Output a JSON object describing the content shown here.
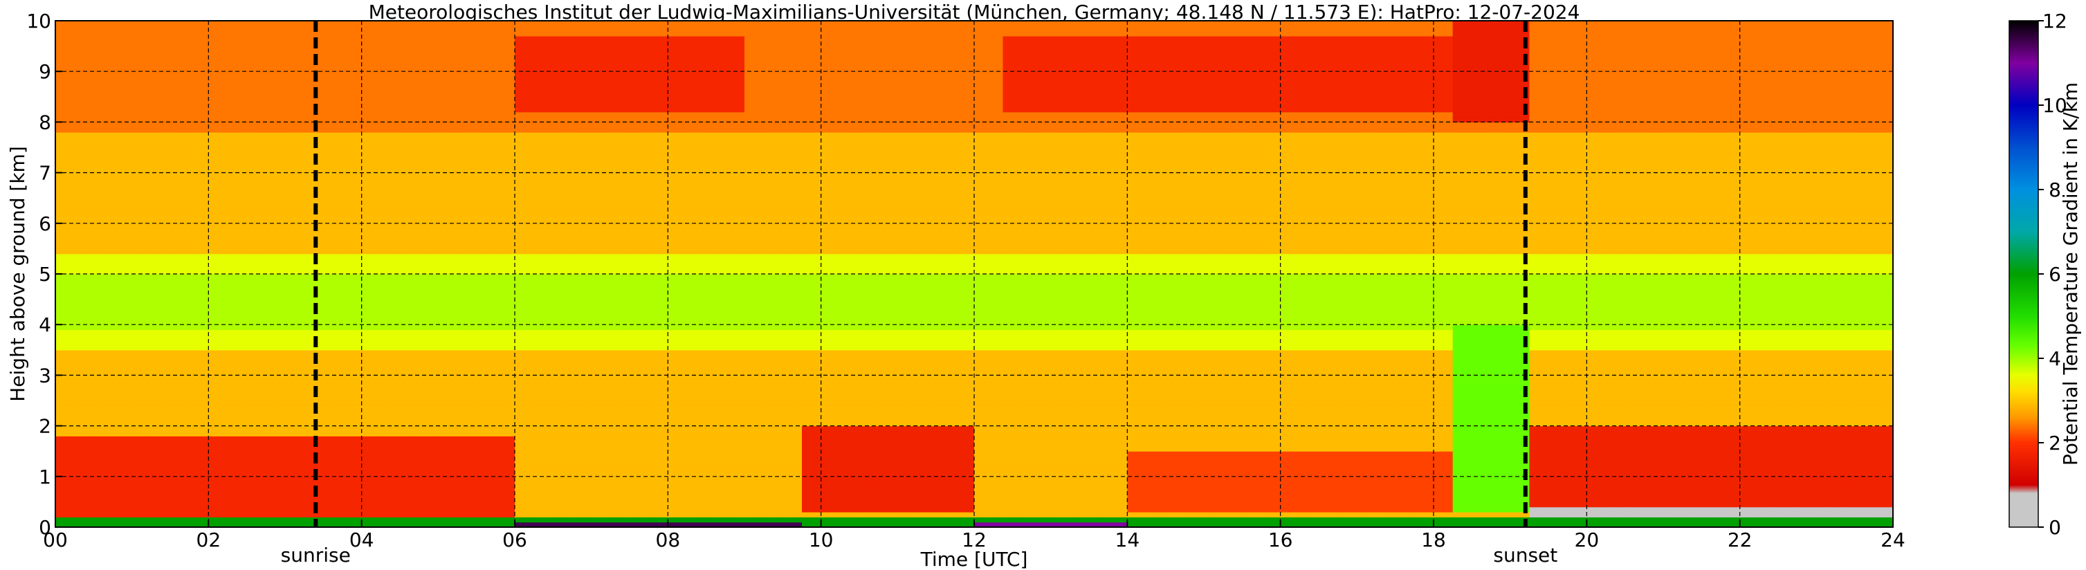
{
  "chart_data": {
    "type": "heatmap",
    "title": "Meteorologisches Institut der Ludwig-Maximilians-Universität (München, Germany; 48.148 N / 11.573 E):    HatPro: 12-07-2024",
    "xlabel": "Time [UTC]",
    "ylabel": "Height above ground [km]",
    "colorbar_label": "Potential Temperature Gradient in K/km",
    "xlim": [
      0,
      24
    ],
    "ylim": [
      0,
      10
    ],
    "x_ticks": [
      0,
      2,
      4,
      6,
      8,
      10,
      12,
      14,
      16,
      18,
      20,
      22,
      24
    ],
    "x_tick_labels": [
      "00",
      "02",
      "04",
      "06",
      "08",
      "10",
      "12",
      "14",
      "16",
      "18",
      "20",
      "22",
      "24"
    ],
    "y_ticks": [
      0,
      1,
      2,
      3,
      4,
      5,
      6,
      7,
      8,
      9,
      10
    ],
    "y_tick_labels": [
      "0",
      "1",
      "2",
      "3",
      "4",
      "5",
      "6",
      "7",
      "8",
      "9",
      "10"
    ],
    "colorbar_range": [
      0,
      12
    ],
    "colorbar_ticks": [
      0,
      2,
      4,
      6,
      8,
      10,
      12
    ],
    "colorbar_tick_labels": [
      "0",
      "2",
      "4",
      "6",
      "8",
      "10",
      "12"
    ],
    "grid": true,
    "events": [
      {
        "label": "sunrise",
        "time": 3.4
      },
      {
        "label": "sunset",
        "time": 19.2
      }
    ],
    "field_regions": [
      {
        "t": [
          0,
          24
        ],
        "h": [
          0,
          10
        ],
        "value": 2.9
      },
      {
        "t": [
          0,
          24
        ],
        "h": [
          7.8,
          10
        ],
        "value": 2.4
      },
      {
        "t": [
          0,
          24
        ],
        "h": [
          3.5,
          5.4
        ],
        "value": 3.6
      },
      {
        "t": [
          0,
          24
        ],
        "h": [
          3.9,
          5.0
        ],
        "value": 3.9
      },
      {
        "t": [
          6.0,
          9.0
        ],
        "h": [
          8.2,
          9.7
        ],
        "value": 1.8
      },
      {
        "t": [
          12.4,
          18.3
        ],
        "h": [
          8.2,
          9.7
        ],
        "value": 1.8
      },
      {
        "t": [
          18.3,
          19.2
        ],
        "h": [
          8.0,
          10
        ],
        "value": 1.6
      },
      {
        "t": [
          0,
          6.0
        ],
        "h": [
          0.2,
          1.8
        ],
        "value": 1.8
      },
      {
        "t": [
          9.7,
          12.0
        ],
        "h": [
          0.3,
          2.0
        ],
        "value": 1.7
      },
      {
        "t": [
          14.0,
          18.3
        ],
        "h": [
          0.3,
          1.5
        ],
        "value": 2.1
      },
      {
        "t": [
          18.3,
          19.2
        ],
        "h": [
          0.3,
          4.0
        ],
        "value": 4.3
      },
      {
        "t": [
          19.2,
          24
        ],
        "h": [
          0.3,
          2.0
        ],
        "value": 1.7
      },
      {
        "t": [
          19.2,
          24
        ],
        "h": [
          0,
          0.4
        ],
        "value": 0.4
      },
      {
        "t": [
          0,
          24
        ],
        "h": [
          0,
          0.2
        ],
        "value": 6.0
      },
      {
        "t": [
          6.0,
          9.7
        ],
        "h": [
          0,
          0.12
        ],
        "value": 11.5
      },
      {
        "t": [
          12.0,
          14.0
        ],
        "h": [
          0,
          0.12
        ],
        "value": 11.0
      }
    ],
    "colormap": [
      {
        "value": 0,
        "color": "#c8c8c8"
      },
      {
        "value": 0.8,
        "color": "#c8c8c8"
      },
      {
        "value": 1.0,
        "color": "#d00000"
      },
      {
        "value": 2.0,
        "color": "#ff3000"
      },
      {
        "value": 2.6,
        "color": "#ff9900"
      },
      {
        "value": 3.2,
        "color": "#ffdd00"
      },
      {
        "value": 3.6,
        "color": "#e6ff00"
      },
      {
        "value": 4.3,
        "color": "#66ff00"
      },
      {
        "value": 5.0,
        "color": "#22dd00"
      },
      {
        "value": 6.0,
        "color": "#00a000"
      },
      {
        "value": 7.0,
        "color": "#00a8a8"
      },
      {
        "value": 8.0,
        "color": "#0090e0"
      },
      {
        "value": 9.0,
        "color": "#0050d0"
      },
      {
        "value": 10.0,
        "color": "#0000c0"
      },
      {
        "value": 11.0,
        "color": "#8000a0"
      },
      {
        "value": 12.0,
        "color": "#000000"
      }
    ]
  }
}
